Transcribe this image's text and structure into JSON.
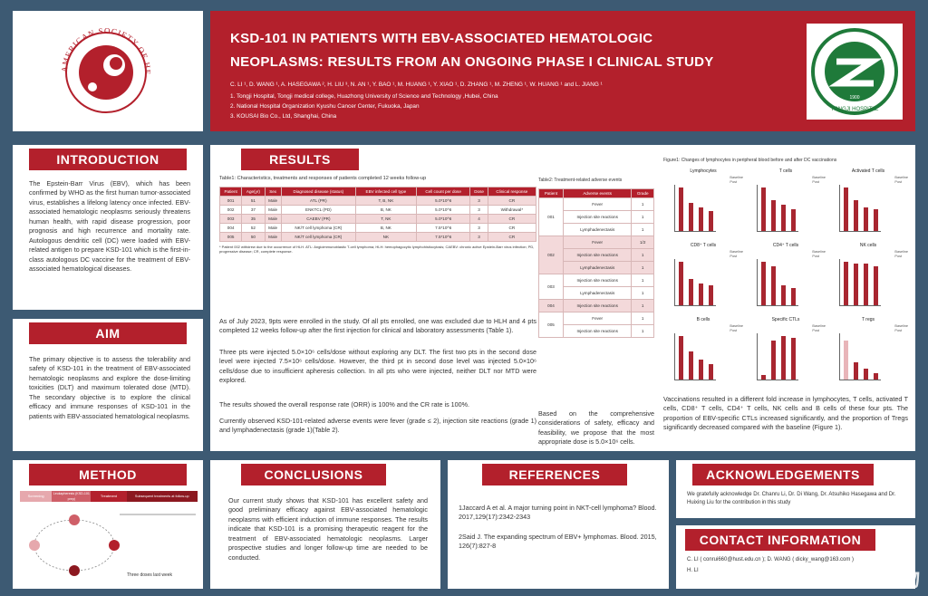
{
  "society_logo_text": "AMERICAN SOCIETY OF HEMATOLOGY",
  "title_line1": "KSD-101 IN PATIENTS WITH EBV-ASSOCIATED HEMATOLOGIC",
  "title_line2": "NEOPLASMS: RESULTS FROM AN ONGOING PHASE I CLINICAL STUDY",
  "authors": "C. LI ¹, D. WANG ¹, A. HASEGAWA ², H. LIU ³, N. AN ¹, Y. BAO ¹, M. HUANG ¹, Y. XIAO ¹, D. ZHANG ¹, M. ZHENG ¹, W. HUANG ¹ and L. JIANG ¹",
  "affiliations": [
    "1. Tongji Hospital, Tongji medical college, Huazhong University of Science and Technology ,Hubei, China",
    "2. National Hospital Organization Kyushu Cancer Center, Fukuoka, Japan",
    "3. KOUSAI Bio Co., Ltd, Shanghai, China"
  ],
  "hospital_logo_text": "TONGJI HOSPITAL",
  "hospital_logo_year": "1900",
  "intro": {
    "heading": "INTRODUCTION",
    "text": "The Epstein-Barr Virus (EBV), which has been confirmed by WHO as the first human tumor-associated virus, establishes a lifelong latency once infected. EBV-associated hematologic neoplasms seriously threatens human health, with rapid disease progression, poor prognosis and high recurrence and mortality rate. Autologous dendritic cell (DC) were loaded with EBV-related antigen to prepare KSD-101 which is the first-in-class autologous DC vaccine for the treatment of EBV-associated hematological diseases."
  },
  "aim": {
    "heading": "AIM",
    "text": "The primary objective is to assess the tolerability and safety of KSD-101 in the treatment of EBV-associated hematologic neoplasms and explore the dose-limiting toxicities (DLT) and maximum tolerated dose (MTD). The secondary objective is to explore the clinical efficacy and immune responses of KSD-101 in the patients with EBV-associated hematological neoplasms."
  },
  "results": {
    "heading": "RESULTS",
    "table1": {
      "caption": "Table1: Characteristics, treatments and responses of patients completed 12 weeks follow-up",
      "headers": [
        "Patient",
        "Age(yr)",
        "Sex",
        "Diagnosed disease (status)",
        "EBV infected cell type",
        "Cell count per dose",
        "Dose",
        "Clinical response"
      ],
      "rows": [
        [
          "001",
          "51",
          "Male",
          "ATL (PR)",
          "T, B, NK",
          "5.0*10^6",
          "3",
          "CR"
        ],
        [
          "002",
          "37",
          "Male",
          "ENKTCL (PD)",
          "B, NK",
          "5.0*10^6",
          "3",
          "Withdrawal*"
        ],
        [
          "003",
          "35",
          "Male",
          "CAEBV (PR)",
          "T, NK",
          "5.0*10^6",
          "4",
          "CR"
        ],
        [
          "004",
          "52",
          "Male",
          "NK/T cell lymphoma (CR)",
          "B, NK",
          "7.5*10^6",
          "3",
          "CR"
        ],
        [
          "005",
          "50",
          "Male",
          "NK/T cell lymphoma (CR)",
          "NK",
          "7.5*10^6",
          "3",
          "CR"
        ]
      ],
      "footnote": "* Patient 002 withdrew due to the occurrence of HLH. ATL: Angioimmunoblastic T-cell lymphoma; HLH: hemophagocytic lymphohistiocytosis; CAEBV: chronic active Epstein-Barr virus infection; PD, progressive disease; CR, complete response."
    },
    "para1": "As of July 2023, 9pts were enrolled in the study. Of all pts enrolled, one was excluded due to HLH and 4 pts completed 12 weeks follow-up after the first injection for clinical and laboratory assessments (Table 1).",
    "para2": "Three pts were injected 5.0×10⁶ cells/dose without exploring any DLT. The first two pts in the second dose level were injected 7.5×10⁶ cells/dose. However, the third pt in second dose level was injected 5.0×10⁶ cells/dose due to insufficient apheresis collection. In all pts who were injected, neither DLT nor MTD were explored.",
    "para3": "The results showed the overall response rate (ORR) is 100% and the CR rate is 100%.",
    "para4": "Currently observed KSD-101-related adverse events were fever (grade ≤ 2), injection site reactions (grade 1) and lymphadenectasis  (grade 1)(Table 2).",
    "table2": {
      "caption": "Table2: Treatment-related  adverse  events",
      "headers": [
        "Patient",
        "Adverse events",
        "Grade"
      ],
      "groups": [
        {
          "patient": "001",
          "events": [
            [
              "Fever",
              "1"
            ],
            [
              "Injection site reactions",
              "1"
            ],
            [
              "Lymphadenectasis",
              "1"
            ]
          ]
        },
        {
          "patient": "002",
          "events": [
            [
              "Fever",
              "1/2"
            ],
            [
              "Injection site reactions",
              "1"
            ],
            [
              "Lymphadenectasis",
              "1"
            ]
          ]
        },
        {
          "patient": "003",
          "events": [
            [
              "Injection site reactions",
              "1"
            ],
            [
              "Lymphadenectasis",
              "1"
            ]
          ]
        },
        {
          "patient": "004",
          "events": [
            [
              "Injection site reactions",
              "1"
            ]
          ]
        },
        {
          "patient": "005",
          "events": [
            [
              "Fever",
              "1"
            ],
            [
              "Injection site reactions",
              "1"
            ]
          ]
        }
      ]
    },
    "para5": "Based on the comprehensive considerations of safety, efficacy and feasibility, we propose that the most appropriate dose is 5.0×10⁶ cells.",
    "figure_caption": "Figure1: Changes of lymphocytes in peripheral  blood before and after DC vaccinations",
    "chart_panels": [
      {
        "title": "Lymphocytes",
        "values": [
          1.0,
          0.65,
          0.55,
          0.45
        ]
      },
      {
        "title": "T cells",
        "values": [
          1.0,
          0.7,
          0.6,
          0.5
        ]
      },
      {
        "title": "Activated T cells",
        "values": [
          1.0,
          0.7,
          0.55,
          0.5
        ]
      },
      {
        "title": "CD8⁺ T cells",
        "values": [
          1.0,
          0.6,
          0.5,
          0.45
        ]
      },
      {
        "title": "CD4⁺ T cells",
        "values": [
          1.0,
          0.9,
          0.45,
          0.4
        ]
      },
      {
        "title": "NK cells",
        "values": [
          1.0,
          0.95,
          0.95,
          0.9
        ]
      },
      {
        "title": "B cells",
        "values": [
          1.0,
          0.65,
          0.45,
          0.35
        ]
      },
      {
        "title": "Specific CTLs",
        "values": [
          0.1,
          0.9,
          1.0,
          0.95
        ]
      },
      {
        "title": "T regs",
        "values": [
          0.9,
          0.4,
          0.25,
          0.15
        ]
      }
    ],
    "chart_legend": [
      "Baseline",
      "Post"
    ],
    "para6": "Vaccinations resulted in a different fold increase in lymphocytes, T cells, activated T cells, CD8⁺ T cells, CD4⁺ T cells, NK cells and B cells of these four pts. The proportion of EBV-specific CTLs increased significantly, and the proportion of Tregs significantly decreased compared with the baseline (Figure 1)."
  },
  "method": {
    "heading": "METHOD",
    "steps": [
      "Screening",
      "Leukapheresis (KSD-101 prep)",
      "Treatment",
      "Subsequent treatments at follow-up"
    ],
    "cycle_note": "Three doses last week"
  },
  "conclusions": {
    "heading": "CONCLUSIONS",
    "text": "Our current study shows that KSD-101 has excellent safety and good preliminary efficacy against EBV-associated hematologic neoplasms with efficient induction of immune responses. The results indicate that KSD-101 is a promising therapeutic reagent for the treatment of EBV-associated hematologic neoplasms. Larger prospective studies and longer follow-up time are needed to be conducted."
  },
  "references": {
    "heading": "REFERENCES",
    "items": [
      "1Jaccard A et al. A major turning point in NKT-cell lymphoma? Blood. 2017,129(17):2342-2343",
      "2Said J. The expanding spectrum of EBV+ lymphomas. Blood. 2015, 126(7):827-8"
    ]
  },
  "acknowledgements": {
    "heading": "ACKNOWLEDGEMENTS",
    "text": "We gratefully acknowledge Dr. Chanru Li, Dr. Di Wang, Dr. Atsuhiko Hasegawa and Dr. Huixing Liu for the contribution in this study"
  },
  "contact": {
    "heading": "CONTACT INFORMATION",
    "line1": "C. LI ( conrui660@hust.edu.cn ); D. WANG ( dicky_wang@163.com )",
    "line2": "H. LI"
  },
  "watermark": "KOUSAI 恒赛生物",
  "colors": {
    "accent": "#b3202c",
    "background": "#3d5a73"
  }
}
